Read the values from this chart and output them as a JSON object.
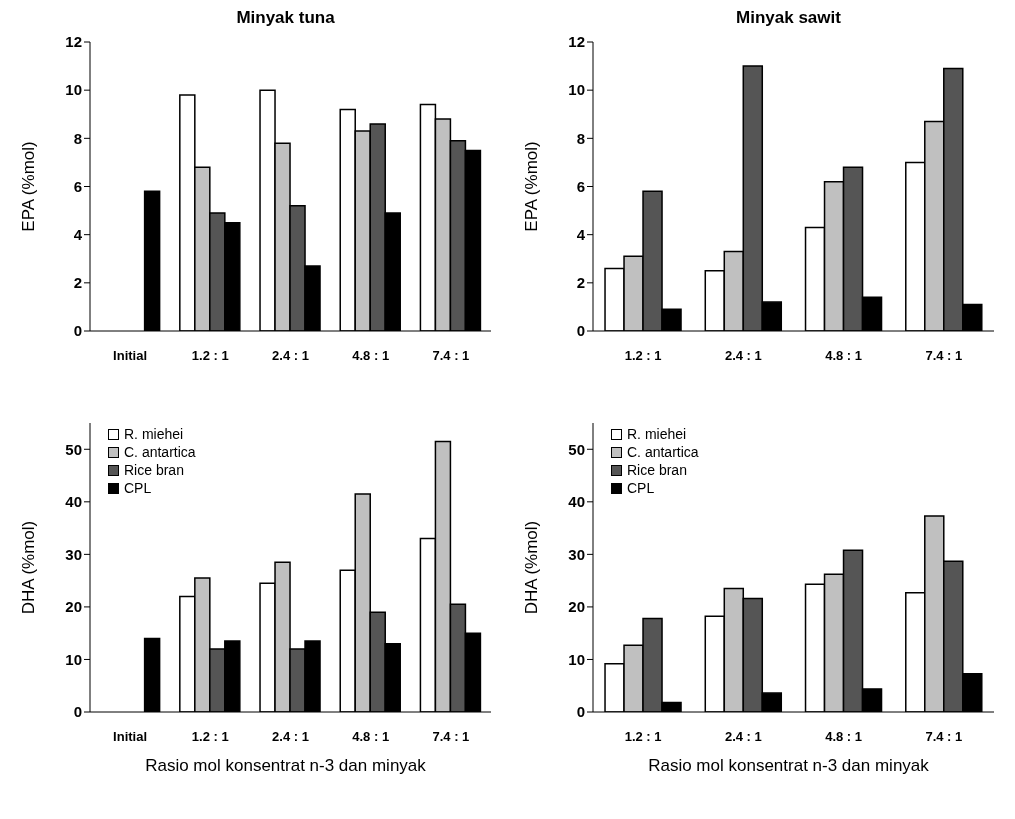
{
  "chart_data": [
    {
      "type": "bar",
      "title": "Minyak tuna",
      "ylabel": "EPA (%mol)",
      "categories": [
        "Initial",
        "1.2 : 1",
        "2.4 : 1",
        "4.8 : 1",
        "7.4 : 1"
      ],
      "ylim": [
        0,
        12
      ],
      "yticks": [
        0,
        2,
        4,
        6,
        8,
        10,
        12
      ],
      "grid": false,
      "legend": false,
      "series": [
        {
          "color": "#ffffff",
          "values": [
            null,
            9.8,
            10.0,
            9.2,
            9.4
          ]
        },
        {
          "color": "#c0c0c0",
          "values": [
            null,
            6.8,
            7.8,
            8.3,
            8.8
          ]
        },
        {
          "color": "#555555",
          "values": [
            null,
            4.9,
            5.2,
            8.6,
            7.9
          ]
        },
        {
          "color": "#000000",
          "values": [
            5.8,
            4.5,
            2.7,
            4.9,
            7.5
          ]
        }
      ]
    },
    {
      "type": "bar",
      "title": "Minyak sawit",
      "ylabel": "EPA (%mol)",
      "categories": [
        "1.2 : 1",
        "2.4 : 1",
        "4.8 : 1",
        "7.4 : 1"
      ],
      "ylim": [
        0,
        12
      ],
      "yticks": [
        0,
        2,
        4,
        6,
        8,
        10,
        12
      ],
      "grid": false,
      "legend": false,
      "series": [
        {
          "color": "#ffffff",
          "values": [
            2.6,
            2.5,
            4.3,
            7.0
          ]
        },
        {
          "color": "#c0c0c0",
          "values": [
            3.1,
            3.3,
            6.2,
            8.7
          ]
        },
        {
          "color": "#555555",
          "values": [
            5.8,
            11.0,
            6.8,
            10.9
          ]
        },
        {
          "color": "#000000",
          "values": [
            0.9,
            1.2,
            1.4,
            1.1
          ]
        }
      ]
    },
    {
      "type": "bar",
      "ylabel": "DHA (%mol)",
      "xlabel": "Rasio mol konsentrat n-3 dan minyak",
      "categories": [
        "Initial",
        "1.2 : 1",
        "2.4 : 1",
        "4.8 : 1",
        "7.4 : 1"
      ],
      "ylim": [
        0,
        55
      ],
      "yticks": [
        0,
        10,
        20,
        30,
        40,
        50
      ],
      "grid": false,
      "legend": "top left",
      "series": [
        {
          "name": "R. miehei",
          "color": "#ffffff",
          "values": [
            null,
            22,
            24.5,
            27,
            33
          ]
        },
        {
          "name": "C. antartica",
          "color": "#c0c0c0",
          "values": [
            null,
            25.5,
            28.5,
            41.5,
            51.5
          ]
        },
        {
          "name": "Rice bran",
          "color": "#555555",
          "values": [
            null,
            12,
            12,
            19,
            20.5
          ]
        },
        {
          "name": "CPL",
          "color": "#000000",
          "values": [
            14,
            13.5,
            13.5,
            13,
            15
          ]
        }
      ]
    },
    {
      "type": "bar",
      "ylabel": "DHA (%mol)",
      "xlabel": "Rasio mol konsentrat n-3 dan minyak",
      "categories": [
        "1.2 : 1",
        "2.4 : 1",
        "4.8 : 1",
        "7.4 : 1"
      ],
      "ylim": [
        0,
        55
      ],
      "yticks": [
        0,
        10,
        20,
        30,
        40,
        50
      ],
      "grid": false,
      "legend": "top left",
      "series": [
        {
          "name": "R. miehei",
          "color": "#ffffff",
          "values": [
            9.2,
            18.2,
            24.3,
            22.7
          ]
        },
        {
          "name": "C. antartica",
          "color": "#c0c0c0",
          "values": [
            12.7,
            23.5,
            26.2,
            37.3
          ]
        },
        {
          "name": "Rice bran",
          "color": "#555555",
          "values": [
            17.8,
            21.6,
            30.8,
            28.7
          ]
        },
        {
          "name": "CPL",
          "color": "#000000",
          "values": [
            1.8,
            3.6,
            4.4,
            7.3
          ]
        }
      ]
    }
  ]
}
